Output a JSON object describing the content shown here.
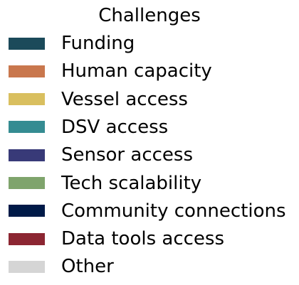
{
  "chart_data": {
    "type": "legend",
    "title": "Challenges",
    "entries": [
      {
        "label": "Funding",
        "color": "#1b4a5a"
      },
      {
        "label": "Human capacity",
        "color": "#c9774d"
      },
      {
        "label": "Vessel access",
        "color": "#d9bf5f"
      },
      {
        "label": "DSV access",
        "color": "#358c92"
      },
      {
        "label": "Sensor access",
        "color": "#383a78"
      },
      {
        "label": "Tech scalability",
        "color": "#7fa46c"
      },
      {
        "label": "Community connections",
        "color": "#001a48"
      },
      {
        "label": "Data tools access",
        "color": "#8c2632"
      },
      {
        "label": "Other",
        "color": "#d5d5d5"
      }
    ]
  }
}
